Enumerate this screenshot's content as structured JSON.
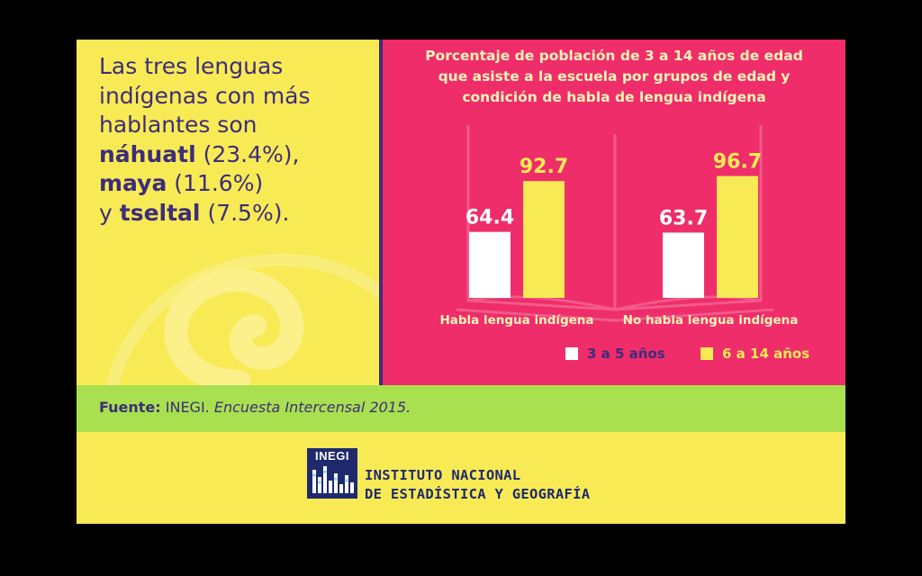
{
  "intro": {
    "line1": "Las tres lenguas",
    "line2": "indígenas con más",
    "line3": "hablantes son",
    "lang1_name": "náhuatl",
    "lang1_pct": " (23.4%),",
    "lang2_name": "maya",
    "lang2_pct": " (11.6%)",
    "lang3_prefix": "y ",
    "lang3_name": "tseltal",
    "lang3_pct": " (7.5%)."
  },
  "chart_data": {
    "type": "bar",
    "title_lines": [
      "Porcentaje de población de 3 a 14 años de edad",
      "que asiste a la escuela por grupos de edad y",
      "condición de habla de lengua indígena"
    ],
    "categories": [
      "Habla lengua indígena",
      "No habla lengua indígena"
    ],
    "series": [
      {
        "name": "3 a 5 años",
        "values": [
          64.4,
          63.7
        ],
        "color": "#ffffff"
      },
      {
        "name": "6 a 14 años",
        "values": [
          92.7,
          96.7
        ],
        "color": "#f8ea55"
      }
    ],
    "value_labels": [
      [
        "64.4",
        "63.7"
      ],
      [
        "92.7",
        "96.7"
      ]
    ],
    "ylim": [
      0,
      100
    ],
    "grid": false,
    "legend_position": "bottom"
  },
  "source": {
    "label": "Fuente:",
    "org": " INEGI. ",
    "publication": "Encuesta Intercensal 2015."
  },
  "logo": {
    "word": "INEGI",
    "line1": "INSTITUTO NACIONAL",
    "line2": "DE ESTADÍSTICA Y GEOGRAFÍA"
  },
  "colors": {
    "yellow": "#f8ea55",
    "pink": "#ee2d6a",
    "green": "#a8e04f",
    "navy": "#3d2d7a",
    "title_text": "#fff4b8"
  }
}
